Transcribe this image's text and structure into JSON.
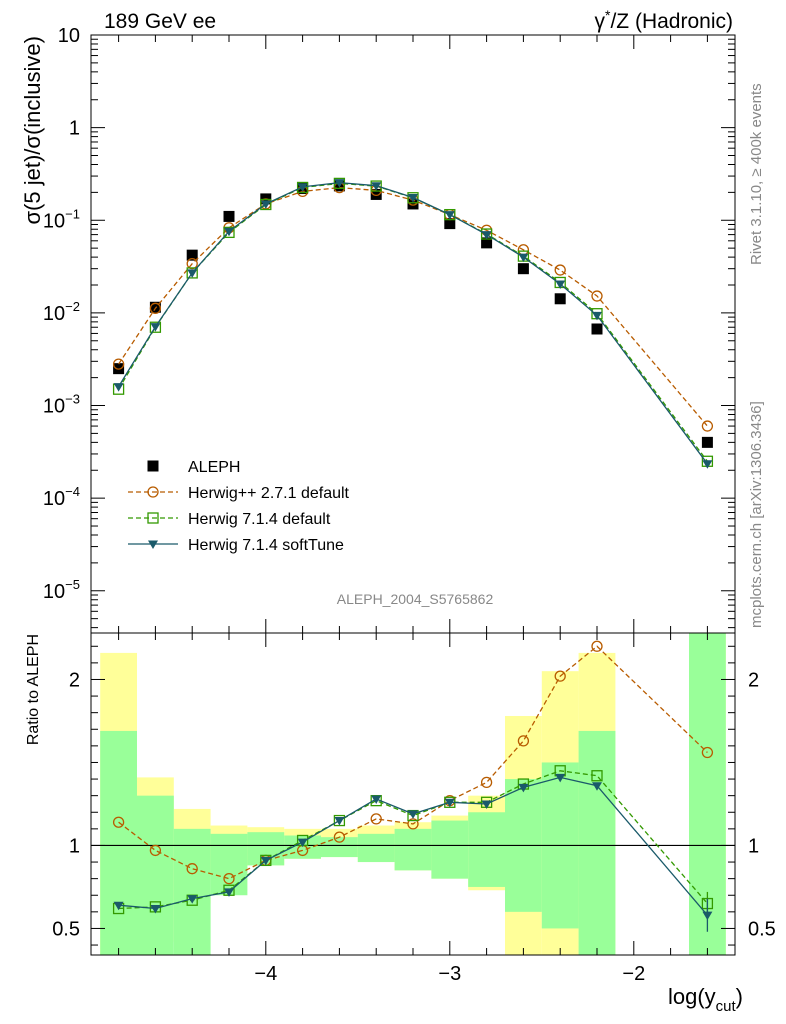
{
  "header": {
    "left": "189 GeV ee",
    "right_pre": "γ",
    "right_sup": "*",
    "right_post": "/Z (Hadronic)"
  },
  "side_labels": {
    "rivet": "Rivet 3.1.10, ≥ 400k events",
    "mcplots": "mcplots.cern.ch [arXiv:1306.3436]"
  },
  "watermark": "ALEPH_2004_S5765862",
  "chart_data": [
    {
      "type": "scatter",
      "panel": "main",
      "ylabel": "σ(5 jet)/σ(inclusive)",
      "yscale": "log",
      "ylim": [
        3.5e-06,
        10
      ],
      "xlim": [
        -4.95,
        -1.45
      ],
      "x_ticks": [
        -4,
        -3,
        -2
      ],
      "y_ticks": [
        {
          "value": 1e-05,
          "base": "10",
          "exp": "−5"
        },
        {
          "value": 0.0001,
          "base": "10",
          "exp": "−4"
        },
        {
          "value": 0.001,
          "base": "10",
          "exp": "−3"
        },
        {
          "value": 0.01,
          "base": "10",
          "exp": "−2"
        },
        {
          "value": 0.1,
          "base": "10",
          "exp": "−1"
        },
        {
          "value": 1,
          "base": "1",
          "exp": ""
        },
        {
          "value": 10,
          "base": "10",
          "exp": ""
        }
      ],
      "legend_position": "bottom-left",
      "series": [
        {
          "name": "ALEPH",
          "color": "#000000",
          "marker": "filled-square",
          "line": "none",
          "x": [
            -4.8,
            -4.6,
            -4.4,
            -4.2,
            -4.0,
            -3.8,
            -3.6,
            -3.4,
            -3.2,
            -3.0,
            -2.8,
            -2.6,
            -2.4,
            -2.2,
            -1.6
          ],
          "y": [
            0.0025,
            0.0115,
            0.042,
            0.11,
            0.17,
            0.22,
            0.235,
            0.19,
            0.15,
            0.092,
            0.057,
            0.03,
            0.0142,
            0.0067,
            0.0004
          ]
        },
        {
          "name": "Herwig++ 2.7.1 default",
          "color": "#b85c00",
          "marker": "open-circle",
          "line": "dashed",
          "x": [
            -4.8,
            -4.6,
            -4.4,
            -4.2,
            -4.0,
            -3.8,
            -3.6,
            -3.4,
            -3.2,
            -3.0,
            -2.8,
            -2.6,
            -2.4,
            -2.2,
            -1.6
          ],
          "y": [
            0.0028,
            0.0112,
            0.034,
            0.083,
            0.15,
            0.205,
            0.225,
            0.21,
            0.165,
            0.115,
            0.078,
            0.048,
            0.029,
            0.0152,
            0.0006
          ]
        },
        {
          "name": "Herwig 7.1.4 default",
          "color": "#339900",
          "marker": "open-square",
          "line": "dashed",
          "x": [
            -4.8,
            -4.6,
            -4.4,
            -4.2,
            -4.0,
            -3.8,
            -3.6,
            -3.4,
            -3.2,
            -3.0,
            -2.8,
            -2.6,
            -2.4,
            -2.2,
            -1.6
          ],
          "y": [
            0.0015,
            0.007,
            0.027,
            0.074,
            0.148,
            0.226,
            0.25,
            0.234,
            0.175,
            0.115,
            0.071,
            0.041,
            0.0213,
            0.0098,
            0.00025
          ]
        },
        {
          "name": "Herwig 7.1.4 softTune",
          "color": "#1a5a6a",
          "marker": "filled-triangle-down",
          "line": "solid",
          "x": [
            -4.8,
            -4.6,
            -4.4,
            -4.2,
            -4.0,
            -3.8,
            -3.6,
            -3.4,
            -3.2,
            -3.0,
            -2.8,
            -2.6,
            -2.4,
            -2.2,
            -1.6
          ],
          "y": [
            0.0016,
            0.0071,
            0.027,
            0.076,
            0.15,
            0.229,
            0.255,
            0.236,
            0.176,
            0.115,
            0.07,
            0.04,
            0.0205,
            0.0094,
            0.000235
          ]
        }
      ]
    },
    {
      "type": "area",
      "panel": "ratio",
      "ylabel": "Ratio to ALEPH",
      "xlabel_base": "log(y",
      "xlabel_sub": "cut",
      "xlabel_end": ")",
      "ylim": [
        0.34,
        2.28
      ],
      "xlim": [
        -4.95,
        -1.45
      ],
      "x_ticks": [
        {
          "value": -4,
          "label": "−4"
        },
        {
          "value": -3,
          "label": "−3"
        },
        {
          "value": -2,
          "label": "−2"
        }
      ],
      "y_ticks": [
        {
          "value": 0.5,
          "label": "0.5"
        },
        {
          "value": 1,
          "label": "1"
        },
        {
          "value": 2,
          "label": "2"
        }
      ],
      "reference_line": 1,
      "uncertainty_bands": {
        "bins": [
          [
            -4.9,
            -4.7
          ],
          [
            -4.7,
            -4.5
          ],
          [
            -4.5,
            -4.3
          ],
          [
            -4.3,
            -4.1
          ],
          [
            -4.1,
            -3.9
          ],
          [
            -3.9,
            -3.7
          ],
          [
            -3.7,
            -3.5
          ],
          [
            -3.5,
            -3.3
          ],
          [
            -3.3,
            -3.1
          ],
          [
            -3.1,
            -2.9
          ],
          [
            -2.9,
            -2.7
          ],
          [
            -2.7,
            -2.5
          ],
          [
            -2.5,
            -2.3
          ],
          [
            -2.3,
            -2.1
          ],
          [
            -1.7,
            -1.5
          ]
        ],
        "stat_color": "#99ff99",
        "total_color": "#ffff99",
        "stat_lo": [
          0.3,
          0.3,
          0.3,
          0.7,
          0.88,
          0.92,
          0.93,
          0.9,
          0.85,
          0.8,
          0.75,
          0.6,
          0.5,
          0.3,
          0.3
        ],
        "stat_hi": [
          1.69,
          1.3,
          1.1,
          1.07,
          1.08,
          1.06,
          1.05,
          1.07,
          1.1,
          1.15,
          1.2,
          1.4,
          1.5,
          1.69,
          2.28
        ],
        "total_lo": [
          0.3,
          0.42,
          0.65,
          0.83,
          0.88,
          0.92,
          0.93,
          0.9,
          0.85,
          0.8,
          0.73,
          0.3,
          0.3,
          0.3,
          0.3
        ],
        "total_hi": [
          2.16,
          1.41,
          1.22,
          1.12,
          1.11,
          1.1,
          1.1,
          1.12,
          1.14,
          1.18,
          1.3,
          1.78,
          2.05,
          2.16,
          2.28
        ]
      },
      "series": [
        {
          "name": "Herwig++ 2.7.1 default",
          "color": "#b85c00",
          "marker": "open-circle",
          "line": "dashed",
          "x": [
            -4.8,
            -4.6,
            -4.4,
            -4.2,
            -4.0,
            -3.8,
            -3.6,
            -3.4,
            -3.2,
            -3.0,
            -2.8,
            -2.6,
            -2.4,
            -2.2,
            -1.6
          ],
          "y": [
            1.14,
            0.97,
            0.86,
            0.8,
            0.91,
            0.97,
            1.05,
            1.16,
            1.13,
            1.27,
            1.38,
            1.63,
            2.02,
            2.2,
            1.56
          ]
        },
        {
          "name": "Herwig 7.1.4 default",
          "color": "#339900",
          "marker": "open-square",
          "line": "dashed",
          "x": [
            -4.8,
            -4.6,
            -4.4,
            -4.2,
            -4.0,
            -3.8,
            -3.6,
            -3.4,
            -3.2,
            -3.0,
            -2.8,
            -2.6,
            -2.4,
            -2.2,
            -1.6
          ],
          "y": [
            0.62,
            0.63,
            0.67,
            0.73,
            0.91,
            1.03,
            1.15,
            1.27,
            1.18,
            1.26,
            1.26,
            1.37,
            1.45,
            1.42,
            0.65
          ]
        },
        {
          "name": "Herwig 7.1.4 softTune",
          "color": "#1a5a6a",
          "marker": "filled-triangle-down",
          "line": "solid",
          "x": [
            -4.8,
            -4.6,
            -4.4,
            -4.2,
            -4.0,
            -3.8,
            -3.6,
            -3.4,
            -3.2,
            -3.0,
            -2.8,
            -2.6,
            -2.4,
            -2.2,
            -1.6
          ],
          "y": [
            0.64,
            0.62,
            0.68,
            0.72,
            0.91,
            1.02,
            1.15,
            1.28,
            1.19,
            1.26,
            1.25,
            1.35,
            1.41,
            1.36,
            0.58
          ]
        }
      ]
    }
  ]
}
